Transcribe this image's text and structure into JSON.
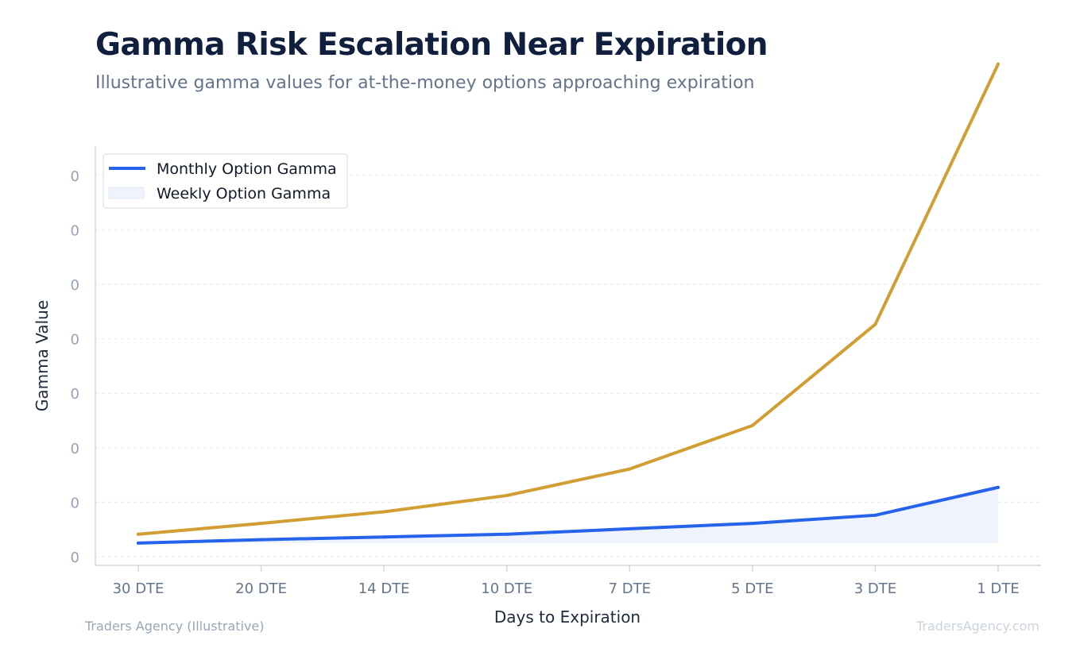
{
  "header": {
    "title": "Gamma Risk Escalation Near Expiration",
    "subtitle": "Illustrative gamma values for at-the-money options approaching expiration"
  },
  "footer": {
    "source": "Traders Agency (Illustrative)",
    "brand": "TradersAgency.com"
  },
  "chart_data": {
    "type": "line",
    "title": "Gamma Risk Escalation Near Expiration",
    "xlabel": "Days to Expiration",
    "ylabel": "Gamma Value",
    "categories": [
      "30 DTE",
      "20 DTE",
      "14 DTE",
      "10 DTE",
      "7 DTE",
      "5 DTE",
      "3 DTE",
      "1 DTE"
    ],
    "y_tick_labels": [
      "0",
      "0",
      "0",
      "0",
      "0",
      "0",
      "0",
      "0"
    ],
    "ylim": [
      0,
      0.07
    ],
    "grid": true,
    "legend_position": "top-left",
    "series": [
      {
        "name": "Monthly Option Gamma",
        "color": "#2563eb",
        "fill": "#eef3fd",
        "values": [
          0.002,
          0.0025,
          0.0029,
          0.0033,
          0.0041,
          0.0049,
          0.0061,
          0.0102
        ]
      },
      {
        "name": "Weekly Option Gamma",
        "color": "#d19e33",
        "fill": "#eef3fd",
        "values": [
          0.0033,
          0.0049,
          0.0066,
          0.009,
          0.0129,
          0.0193,
          0.0342,
          0.0725
        ]
      }
    ]
  }
}
